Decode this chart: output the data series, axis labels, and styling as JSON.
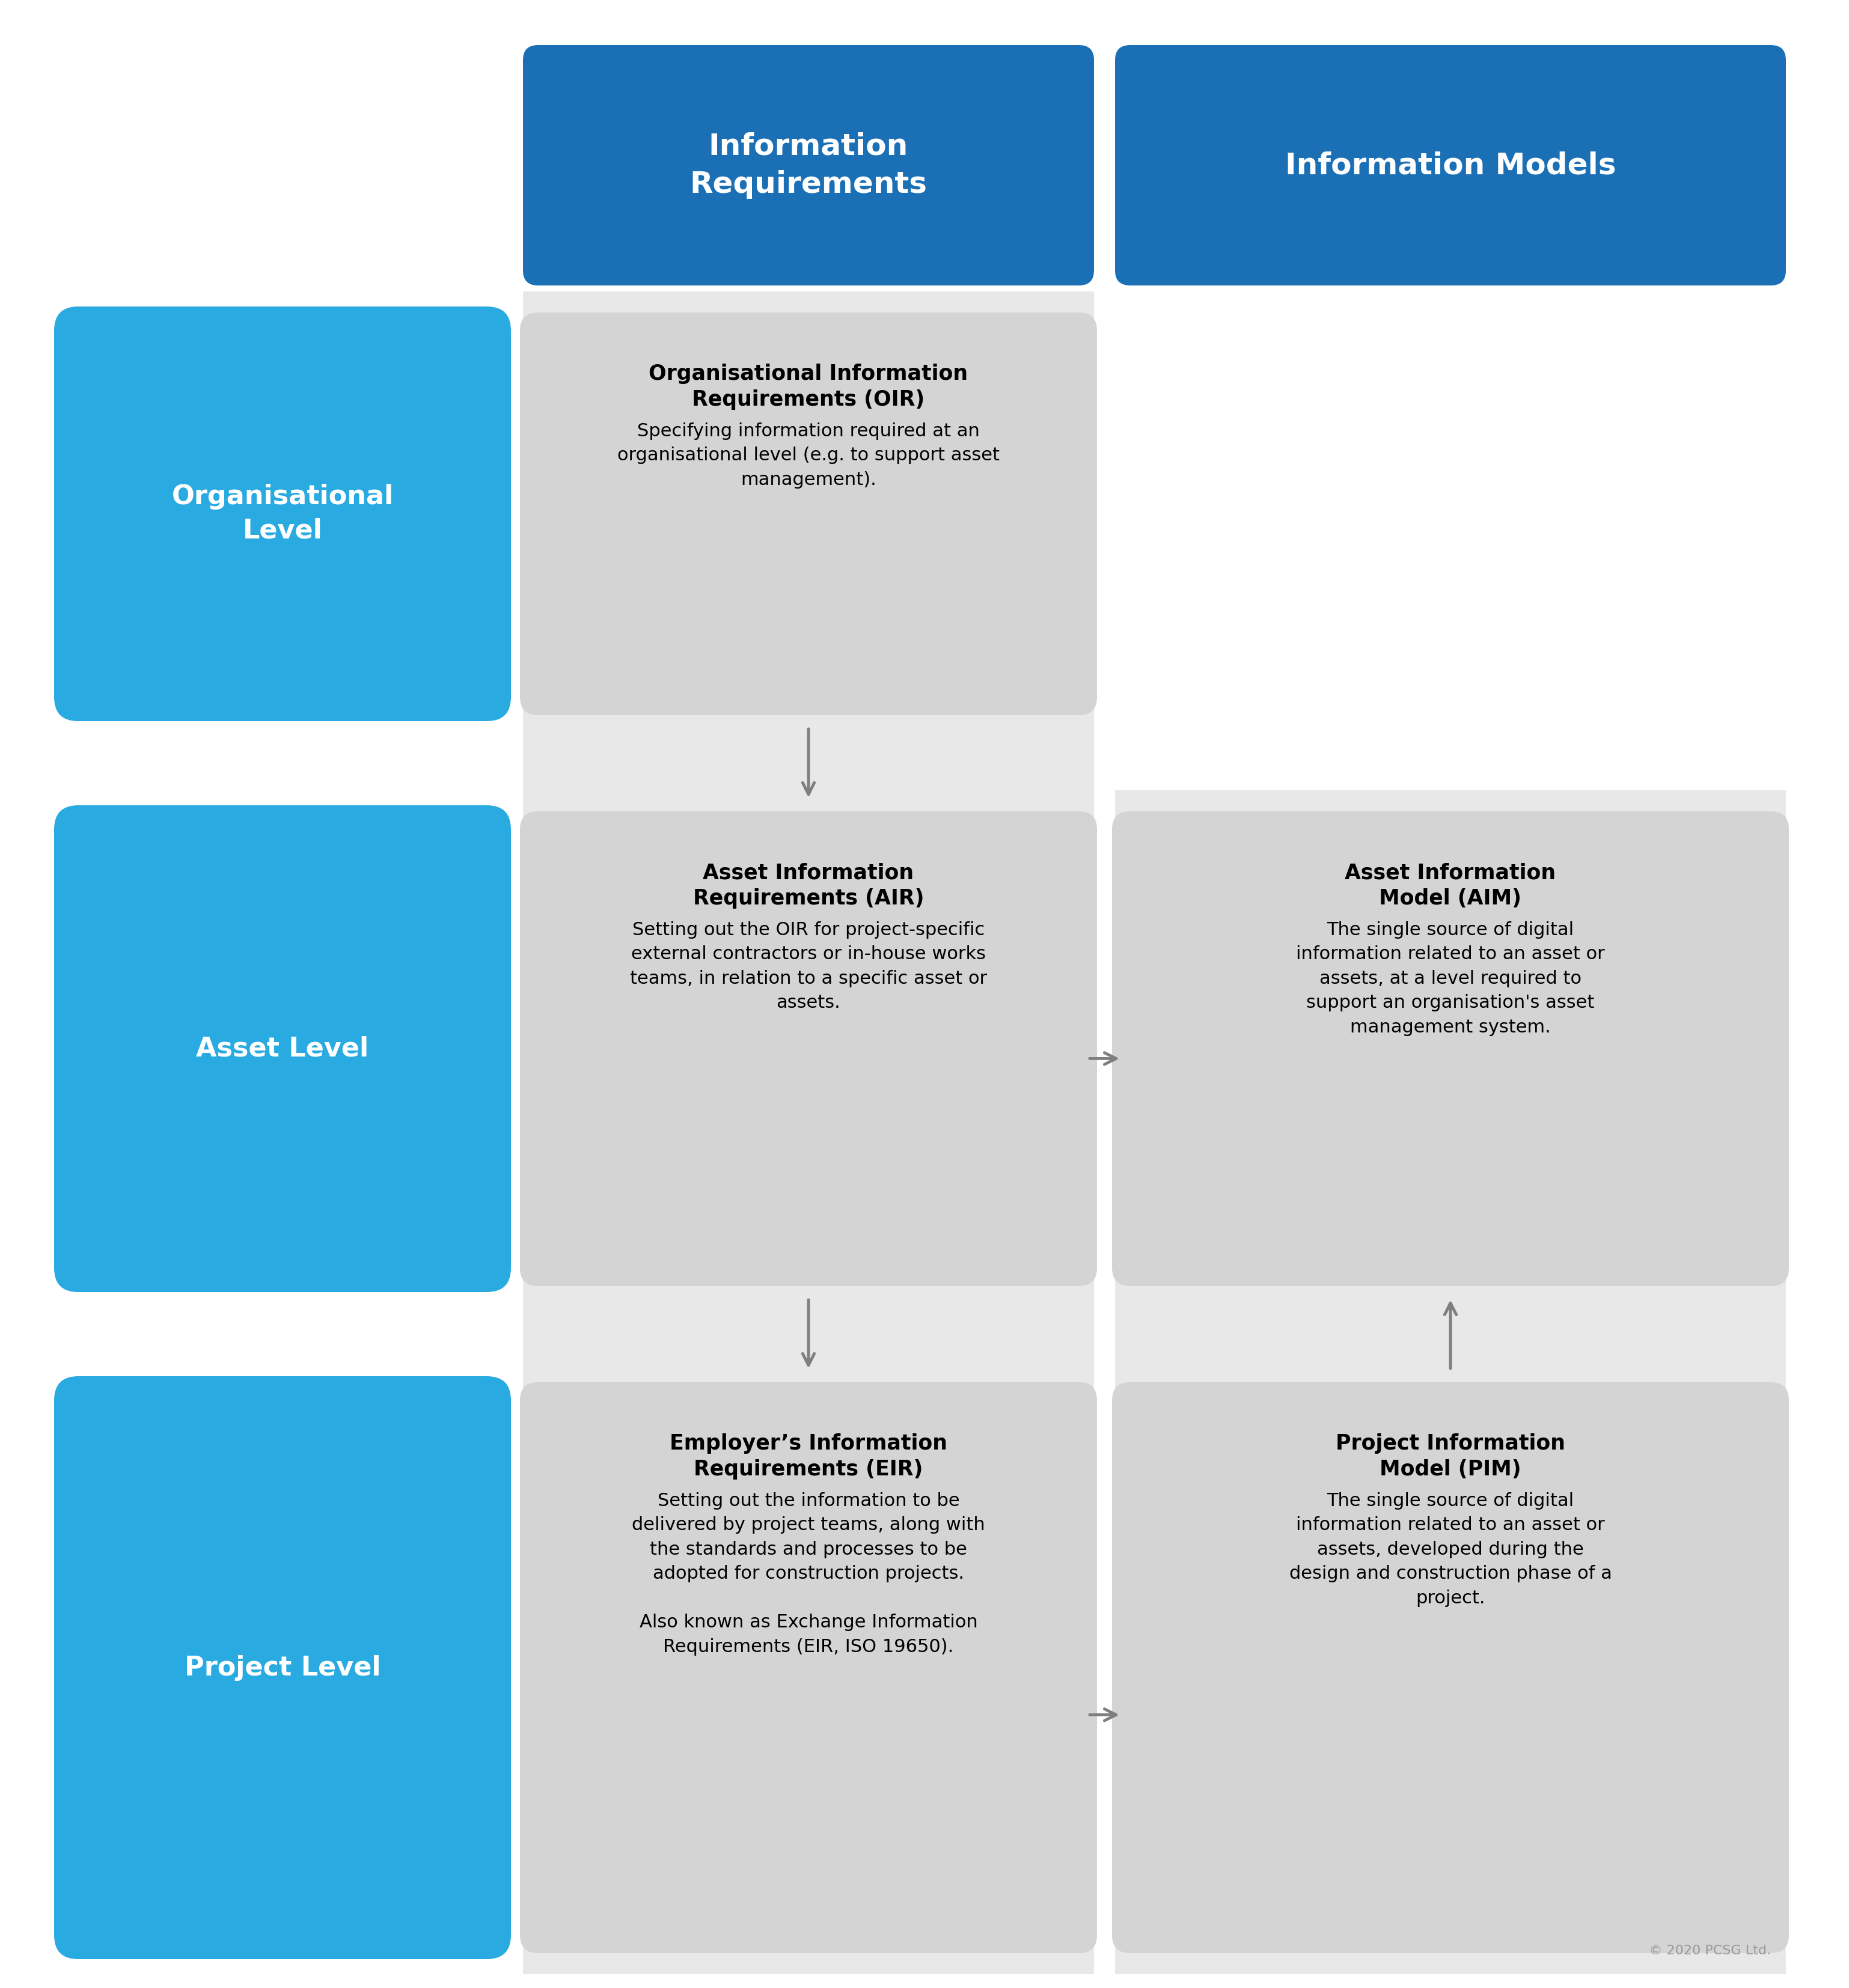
{
  "bg_color": "#ffffff",
  "blue_dark": "#1a6fb5",
  "blue_light": "#29abe2",
  "gray_box": "#d4d4d4",
  "gray_col_bg": "#e8e8e8",
  "arrow_color": "#7f7f7f",
  "copyright": "© 2020 PCSG Ltd.",
  "col_headers": [
    "Information\nRequirements",
    "Information Models"
  ],
  "row_labels": [
    "Organisational\nLevel",
    "Asset Level",
    "Project Level"
  ],
  "oir_title": "Organisational Information\nRequirements (OIR)",
  "oir_body": "Specifying information required at an\norganisational level (e.g. to support asset\nmanagement).",
  "air_title": "Asset Information\nRequirements (AIR)",
  "air_body": "Setting out the OIR for project-specific\nexternal contractors or in-house works\nteams, in relation to a specific asset or\nassets.",
  "aim_title": "Asset Information\nModel (AIM)",
  "aim_body": "The single source of digital\ninformation related to an asset or\nassets, at a level required to\nsupport an organisation's asset\nmanagement system.",
  "eir_title": "Employer’s Information\nRequirements (EIR)",
  "eir_body": "Setting out the information to be\ndelivered by project teams, along with\nthe standards and processes to be\nadopted for construction projects.\n\nAlso known as Exchange Information\nRequirements (EIR, ISO 19650).",
  "pim_title": "Project Information\nModel (PIM)",
  "pim_body": "The single source of digital\ninformation related to an asset or\nassets, developed during the\ndesign and construction phase of a\nproject."
}
